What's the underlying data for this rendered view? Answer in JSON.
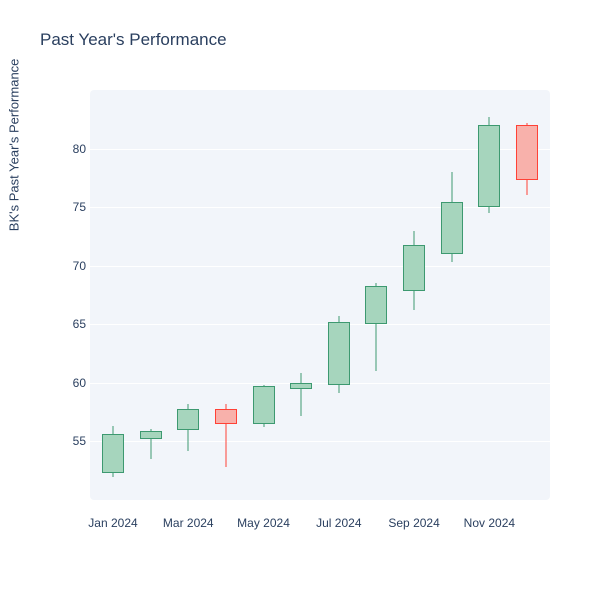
{
  "title": "Past Year's Performance",
  "y_axis_label": "BK's Past Year's Performance",
  "background_color": "#ffffff",
  "plot_bg_color": "#f2f5fa",
  "grid_color": "#ffffff",
  "text_color": "#2a3f5f",
  "title_fontsize": 17,
  "y_axis": {
    "min": 50,
    "max": 85,
    "ticks": [
      55,
      60,
      65,
      70,
      75,
      80
    ]
  },
  "x_axis": {
    "labels": [
      "Jan 2024",
      "Mar 2024",
      "May 2024",
      "Jul 2024",
      "Sep 2024",
      "Nov 2024"
    ],
    "label_positions": [
      0,
      2,
      4,
      6,
      8,
      10
    ]
  },
  "colors": {
    "up_fill": "#a6d5bd",
    "up_stroke": "#3d9970",
    "down_fill": "#f8b1ab",
    "down_stroke": "#ff4136"
  },
  "candle_width": 22,
  "candles": [
    {
      "open": 52.3,
      "close": 55.6,
      "low": 52.0,
      "high": 56.3,
      "dir": "up"
    },
    {
      "open": 55.2,
      "close": 55.9,
      "low": 53.5,
      "high": 56.1,
      "dir": "up"
    },
    {
      "open": 56.0,
      "close": 57.8,
      "low": 54.2,
      "high": 58.2,
      "dir": "up"
    },
    {
      "open": 57.8,
      "close": 56.5,
      "low": 52.8,
      "high": 58.2,
      "dir": "down"
    },
    {
      "open": 56.5,
      "close": 59.7,
      "low": 56.2,
      "high": 59.8,
      "dir": "up"
    },
    {
      "open": 59.5,
      "close": 60.0,
      "low": 57.2,
      "high": 60.8,
      "dir": "up"
    },
    {
      "open": 59.8,
      "close": 65.2,
      "low": 59.1,
      "high": 65.7,
      "dir": "up"
    },
    {
      "open": 65.0,
      "close": 68.3,
      "low": 61.0,
      "high": 68.5,
      "dir": "up"
    },
    {
      "open": 67.8,
      "close": 71.8,
      "low": 66.2,
      "high": 73.0,
      "dir": "up"
    },
    {
      "open": 71.0,
      "close": 75.4,
      "low": 70.3,
      "high": 78.0,
      "dir": "up"
    },
    {
      "open": 75.0,
      "close": 82.0,
      "low": 74.5,
      "high": 82.7,
      "dir": "up"
    },
    {
      "open": 82.0,
      "close": 77.3,
      "low": 76.0,
      "high": 82.2,
      "dir": "down"
    }
  ]
}
